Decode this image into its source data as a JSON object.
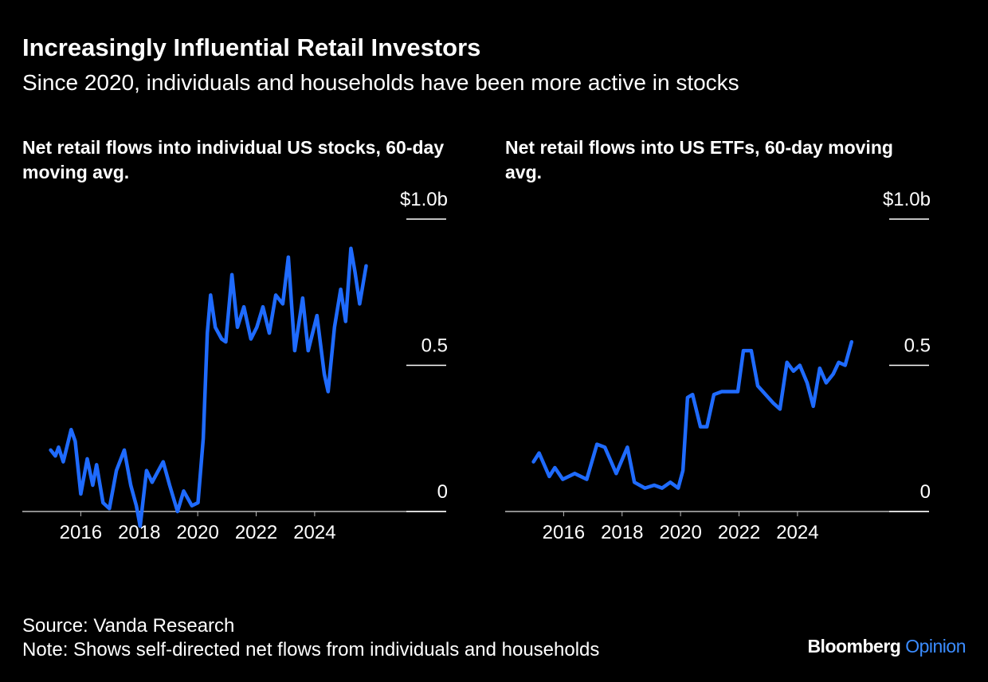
{
  "title": "Increasingly Influential Retail Investors",
  "subtitle": "Since 2020, individuals and households have been more active in stocks",
  "source": "Source: Vanda Research",
  "note": "Note: Shows self-directed net flows from individuals and households",
  "brand": {
    "name": "Bloomberg",
    "section": "Opinion"
  },
  "chart_data": [
    {
      "type": "line",
      "title": "Net retail flows into individual US stocks, 60-day moving avg.",
      "x": [
        2014.97,
        2015.13,
        2015.24,
        2015.4,
        2015.67,
        2015.81,
        2016.0,
        2016.22,
        2016.41,
        2016.54,
        2016.76,
        2016.98,
        2017.22,
        2017.49,
        2017.71,
        2017.9,
        2018.03,
        2018.25,
        2018.44,
        2018.6,
        2018.82,
        2019.04,
        2019.31,
        2019.52,
        2019.8,
        2020.01,
        2020.19,
        2020.33,
        2020.44,
        2020.6,
        2020.82,
        2020.96,
        2021.17,
        2021.36,
        2021.58,
        2021.82,
        2022.02,
        2022.23,
        2022.45,
        2022.67,
        2022.91,
        2023.1,
        2023.32,
        2023.59,
        2023.78,
        2024.08,
        2024.33,
        2024.46,
        2024.68,
        2024.89,
        2025.06,
        2025.24,
        2025.38,
        2025.54,
        2025.76
      ],
      "values": [
        0.21,
        0.19,
        0.22,
        0.17,
        0.28,
        0.24,
        0.06,
        0.18,
        0.09,
        0.16,
        0.03,
        0.01,
        0.14,
        0.21,
        0.09,
        0.02,
        -0.05,
        0.14,
        0.1,
        0.13,
        0.17,
        0.09,
        0.0,
        0.07,
        0.02,
        0.03,
        0.25,
        0.61,
        0.74,
        0.63,
        0.59,
        0.58,
        0.81,
        0.63,
        0.7,
        0.59,
        0.63,
        0.7,
        0.61,
        0.74,
        0.71,
        0.87,
        0.55,
        0.73,
        0.55,
        0.67,
        0.47,
        0.41,
        0.63,
        0.76,
        0.65,
        0.9,
        0.82,
        0.71,
        0.84
      ],
      "color": "#1f6bff",
      "xlim": [
        2014,
        2028.5
      ],
      "xticks": [
        2016,
        2018,
        2020,
        2022,
        2024
      ],
      "ylim": [
        0,
        1
      ],
      "yticks": [
        0,
        0.5,
        {
          "value": 1,
          "label": "$1.0b"
        }
      ]
    },
    {
      "type": "line",
      "title": "Net retail flows into US ETFs, 60-day moving avg.",
      "x": [
        2014.97,
        2015.16,
        2015.51,
        2015.7,
        2015.97,
        2016.38,
        2016.79,
        2017.14,
        2017.41,
        2017.8,
        2018.18,
        2018.42,
        2018.78,
        2019.1,
        2019.37,
        2019.65,
        2019.92,
        2020.08,
        2020.24,
        2020.41,
        2020.68,
        2020.9,
        2021.14,
        2021.41,
        2021.69,
        2021.96,
        2022.15,
        2022.42,
        2022.64,
        2022.91,
        2023.18,
        2023.4,
        2023.64,
        2023.86,
        2024.08,
        2024.33,
        2024.54,
        2024.76,
        2024.98,
        2025.22,
        2025.41,
        2025.63,
        2025.85
      ],
      "values": [
        0.17,
        0.2,
        0.12,
        0.15,
        0.11,
        0.13,
        0.11,
        0.23,
        0.22,
        0.13,
        0.22,
        0.1,
        0.08,
        0.09,
        0.08,
        0.1,
        0.08,
        0.14,
        0.39,
        0.4,
        0.29,
        0.29,
        0.4,
        0.41,
        0.41,
        0.41,
        0.55,
        0.55,
        0.43,
        0.4,
        0.37,
        0.35,
        0.51,
        0.48,
        0.5,
        0.44,
        0.36,
        0.49,
        0.44,
        0.47,
        0.51,
        0.5,
        0.58
      ],
      "color": "#1f6bff",
      "xlim": [
        2014,
        2028.5
      ],
      "xticks": [
        2016,
        2018,
        2020,
        2022,
        2024
      ],
      "ylim": [
        0,
        1
      ],
      "yticks": [
        0,
        0.5,
        {
          "value": 1,
          "label": "$1.0b"
        }
      ]
    }
  ]
}
